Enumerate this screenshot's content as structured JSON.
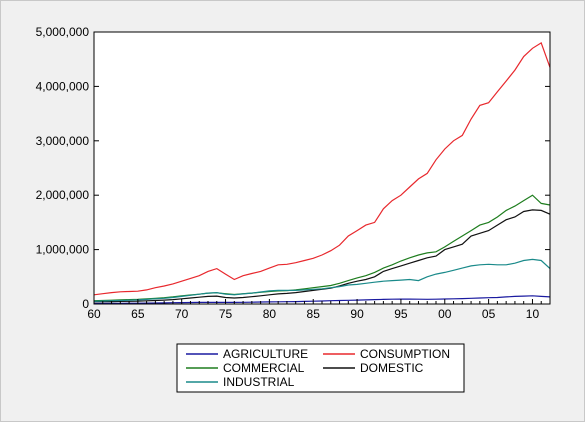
{
  "chart_data": {
    "type": "line",
    "title": "",
    "xlabel": "",
    "ylabel": "",
    "xlim": [
      1960,
      2012
    ],
    "ylim": [
      0,
      5000000
    ],
    "x_ticks": [
      1960,
      1965,
      1970,
      1975,
      1980,
      1985,
      1990,
      1995,
      2000,
      2005,
      2010
    ],
    "x_tick_labels": [
      "60",
      "65",
      "70",
      "75",
      "80",
      "85",
      "90",
      "95",
      "00",
      "05",
      "10"
    ],
    "y_ticks": [
      0,
      1000000,
      2000000,
      3000000,
      4000000,
      5000000
    ],
    "y_tick_labels": [
      "0",
      "1,000,000",
      "2,000,000",
      "3,000,000",
      "4,000,000",
      "5,000,000"
    ],
    "grid": false,
    "legend_position": "bottom",
    "x": [
      1960,
      1961,
      1962,
      1963,
      1964,
      1965,
      1966,
      1967,
      1968,
      1969,
      1970,
      1971,
      1972,
      1973,
      1974,
      1975,
      1976,
      1977,
      1978,
      1979,
      1980,
      1981,
      1982,
      1983,
      1984,
      1985,
      1986,
      1987,
      1988,
      1989,
      1990,
      1991,
      1992,
      1993,
      1994,
      1995,
      1996,
      1997,
      1998,
      1999,
      2000,
      2001,
      2002,
      2003,
      2004,
      2005,
      2006,
      2007,
      2008,
      2009,
      2010,
      2011,
      2012
    ],
    "series": [
      {
        "name": "AGRICULTURE",
        "color": "#1a1aa0",
        "values": [
          10000,
          11000,
          12000,
          13000,
          14000,
          15000,
          17000,
          19000,
          21000,
          23000,
          25000,
          27000,
          29000,
          31000,
          29000,
          29000,
          30000,
          32000,
          34000,
          36000,
          38000,
          40000,
          42000,
          45000,
          48000,
          52000,
          56000,
          60000,
          64000,
          68000,
          72000,
          76000,
          80000,
          84000,
          88000,
          90000,
          90000,
          88000,
          87000,
          88000,
          92000,
          96000,
          100000,
          105000,
          110000,
          115000,
          120000,
          130000,
          140000,
          145000,
          150000,
          140000,
          130000
        ]
      },
      {
        "name": "CONSUMPTION",
        "color": "#e8282d",
        "values": [
          170000,
          190000,
          210000,
          225000,
          230000,
          235000,
          260000,
          300000,
          330000,
          370000,
          420000,
          470000,
          520000,
          600000,
          650000,
          550000,
          450000,
          520000,
          560000,
          600000,
          660000,
          720000,
          730000,
          760000,
          800000,
          840000,
          900000,
          980000,
          1080000,
          1250000,
          1350000,
          1450000,
          1500000,
          1750000,
          1900000,
          2000000,
          2150000,
          2300000,
          2400000,
          2650000,
          2850000,
          3000000,
          3100000,
          3400000,
          3650000,
          3700000,
          3900000,
          4100000,
          4300000,
          4550000,
          4700000,
          4800000,
          4350000
        ]
      },
      {
        "name": "COMMERCIAL",
        "color": "#1e7d1e",
        "values": [
          60000,
          65000,
          70000,
          75000,
          80000,
          85000,
          95000,
          105000,
          115000,
          130000,
          150000,
          165000,
          180000,
          200000,
          205000,
          190000,
          175000,
          190000,
          200000,
          215000,
          230000,
          240000,
          245000,
          260000,
          280000,
          300000,
          320000,
          340000,
          380000,
          430000,
          480000,
          520000,
          580000,
          660000,
          720000,
          790000,
          850000,
          900000,
          940000,
          960000,
          1050000,
          1150000,
          1250000,
          1350000,
          1450000,
          1500000,
          1600000,
          1720000,
          1800000,
          1900000,
          2000000,
          1850000,
          1820000
        ]
      },
      {
        "name": "DOMESTIC",
        "color": "#111111",
        "values": [
          40000,
          42000,
          45000,
          48000,
          50000,
          52000,
          58000,
          65000,
          72000,
          80000,
          95000,
          110000,
          125000,
          140000,
          145000,
          120000,
          110000,
          120000,
          135000,
          150000,
          170000,
          185000,
          195000,
          210000,
          230000,
          250000,
          270000,
          290000,
          330000,
          380000,
          420000,
          450000,
          500000,
          600000,
          650000,
          700000,
          750000,
          800000,
          850000,
          880000,
          1000000,
          1050000,
          1100000,
          1250000,
          1300000,
          1350000,
          1450000,
          1550000,
          1600000,
          1700000,
          1730000,
          1720000,
          1650000
        ]
      },
      {
        "name": "INDUSTRIAL",
        "color": "#1a8a8a",
        "values": [
          50000,
          55000,
          60000,
          65000,
          70000,
          75000,
          85000,
          95000,
          105000,
          120000,
          140000,
          160000,
          180000,
          200000,
          210000,
          180000,
          170000,
          185000,
          200000,
          220000,
          240000,
          250000,
          250000,
          250000,
          260000,
          270000,
          280000,
          300000,
          320000,
          350000,
          360000,
          380000,
          400000,
          420000,
          430000,
          440000,
          450000,
          430000,
          500000,
          550000,
          580000,
          620000,
          660000,
          700000,
          720000,
          730000,
          720000,
          720000,
          750000,
          800000,
          820000,
          800000,
          650000
        ]
      }
    ]
  }
}
